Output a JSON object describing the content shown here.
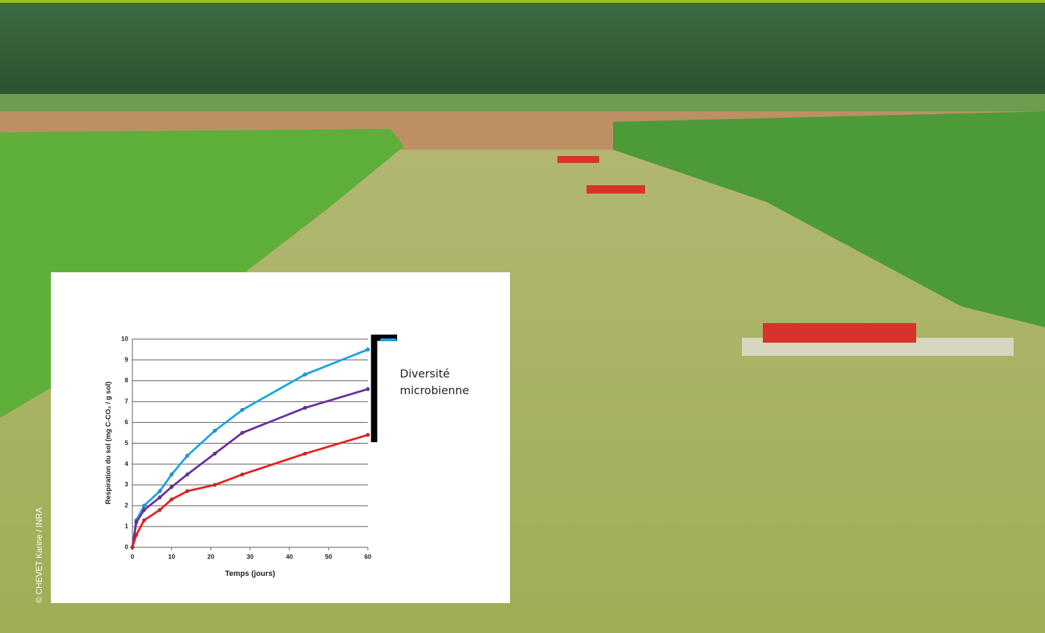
{
  "chart_data": {
    "type": "line",
    "x": [
      0,
      1,
      3,
      7,
      10,
      14,
      21,
      28,
      44,
      60
    ],
    "series": [
      {
        "color": "#1ba3e6",
        "values": [
          0,
          1.3,
          2.0,
          2.7,
          3.5,
          4.4,
          5.6,
          6.6,
          8.3,
          9.5
        ]
      },
      {
        "color": "#6b2fa0",
        "values": [
          0,
          1.2,
          1.8,
          2.4,
          2.9,
          3.5,
          4.5,
          5.5,
          6.7,
          7.6
        ]
      },
      {
        "color": "#e8201f",
        "values": [
          0,
          0.6,
          1.3,
          1.8,
          2.3,
          2.7,
          3.0,
          3.5,
          4.5,
          5.4
        ]
      }
    ],
    "xlim": [
      0,
      60
    ],
    "xticks": [
      0,
      10,
      20,
      30,
      40,
      50,
      60
    ],
    "ylim": [
      0,
      10
    ],
    "yticks": [
      0,
      1,
      2,
      3,
      4,
      5,
      6,
      7,
      8,
      9,
      10
    ],
    "grid": true,
    "xlabel": "Temps (jours)",
    "ylabel": "Respiration du sol (mg C-CO₂ / g sol)",
    "annotation": "Diversité microbienne"
  },
  "credit": "© CHEVET Karine / INRA"
}
